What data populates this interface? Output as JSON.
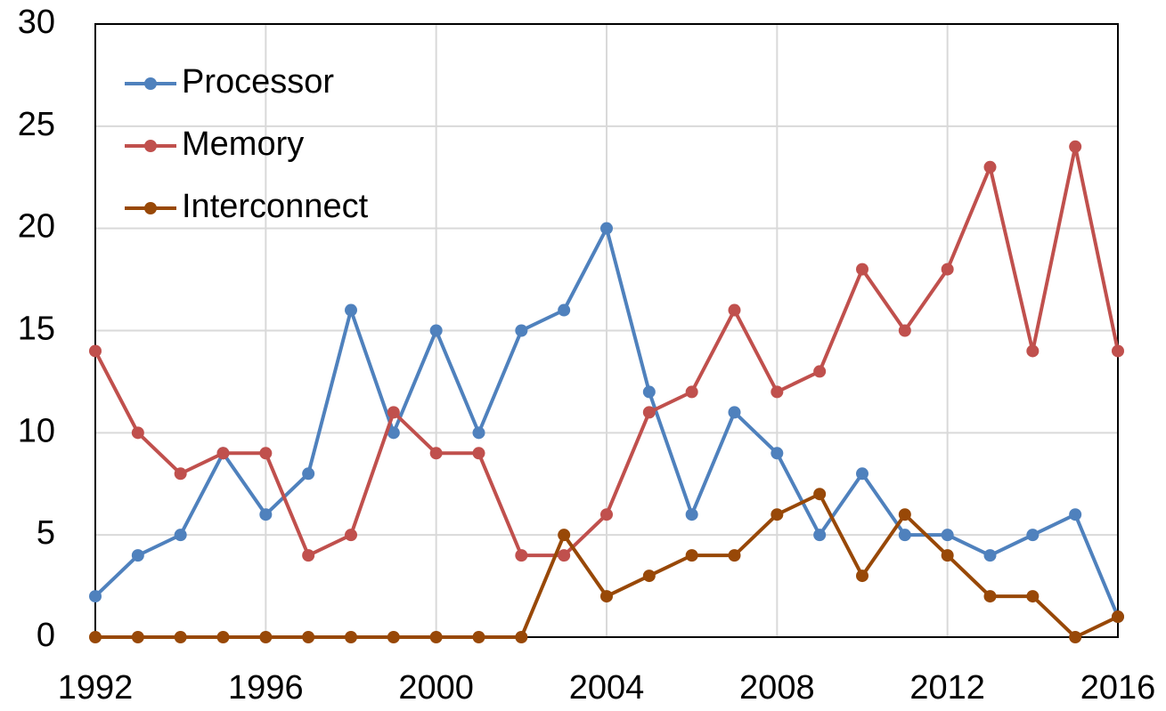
{
  "chart_data": {
    "type": "line",
    "x": [
      1992,
      1993,
      1994,
      1995,
      1996,
      1997,
      1998,
      1999,
      2000,
      2001,
      2002,
      2003,
      2004,
      2005,
      2006,
      2007,
      2008,
      2009,
      2010,
      2011,
      2012,
      2013,
      2014,
      2015,
      2016
    ],
    "series": [
      {
        "name": "Processor",
        "color": "#4f81bd",
        "values": [
          2,
          4,
          5,
          9,
          6,
          8,
          16,
          10,
          15,
          10,
          15,
          16,
          20,
          12,
          6,
          11,
          9,
          5,
          8,
          5,
          5,
          4,
          5,
          6,
          1
        ]
      },
      {
        "name": "Memory",
        "color": "#c0504d",
        "values": [
          14,
          10,
          8,
          9,
          9,
          4,
          5,
          11,
          9,
          9,
          4,
          4,
          6,
          11,
          12,
          16,
          12,
          13,
          18,
          15,
          18,
          23,
          14,
          24,
          14
        ]
      },
      {
        "name": "Interconnect",
        "color": "#984807",
        "values": [
          0,
          0,
          0,
          0,
          0,
          0,
          0,
          0,
          0,
          0,
          0,
          5,
          2,
          3,
          4,
          4,
          6,
          7,
          3,
          6,
          4,
          2,
          2,
          0,
          1
        ]
      }
    ],
    "xlim": [
      1992,
      2016
    ],
    "xticks": [
      1992,
      1996,
      2000,
      2004,
      2008,
      2012,
      2016
    ],
    "ylim": [
      0,
      30
    ],
    "yticks": [
      0,
      5,
      10,
      15,
      20,
      25,
      30
    ],
    "grid": true,
    "legend": "upper left"
  }
}
